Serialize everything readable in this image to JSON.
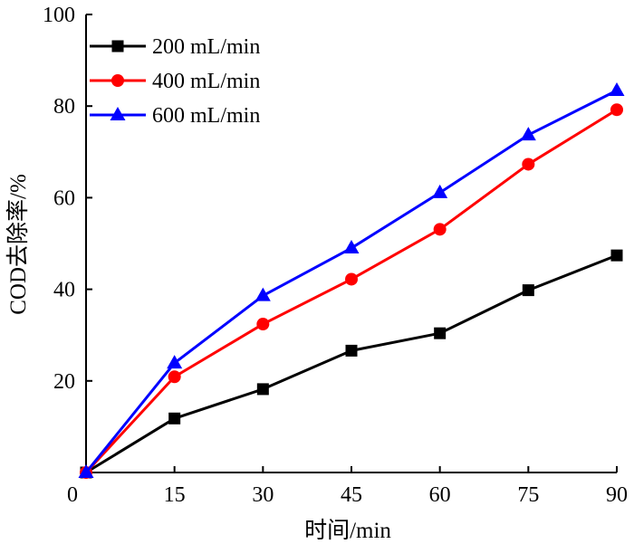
{
  "chart_data": {
    "type": "line",
    "xlabel": "时间/min",
    "ylabel": "COD去除率/%",
    "xlim": [
      0,
      90
    ],
    "ylim": [
      0,
      100
    ],
    "x_ticks": [
      15,
      30,
      45,
      60,
      75,
      90
    ],
    "y_ticks": [
      20,
      40,
      60,
      80,
      100
    ],
    "origin_label": "0",
    "grid": false,
    "legend_position": "top-left",
    "x": [
      0,
      15,
      30,
      45,
      60,
      75,
      90
    ],
    "series": [
      {
        "name": "200 mL/min",
        "color": "#000000",
        "marker": "square",
        "values": [
          0,
          11.8,
          18.2,
          26.6,
          30.4,
          39.8,
          47.4
        ]
      },
      {
        "name": "400 mL/min",
        "color": "#ff0000",
        "marker": "circle",
        "values": [
          0,
          20.9,
          32.4,
          42.2,
          53.1,
          67.3,
          79.2
        ]
      },
      {
        "name": "600 mL/min",
        "color": "#0000ff",
        "marker": "triangle",
        "values": [
          0,
          23.9,
          38.6,
          49.0,
          61.1,
          73.7,
          83.4
        ]
      }
    ]
  }
}
